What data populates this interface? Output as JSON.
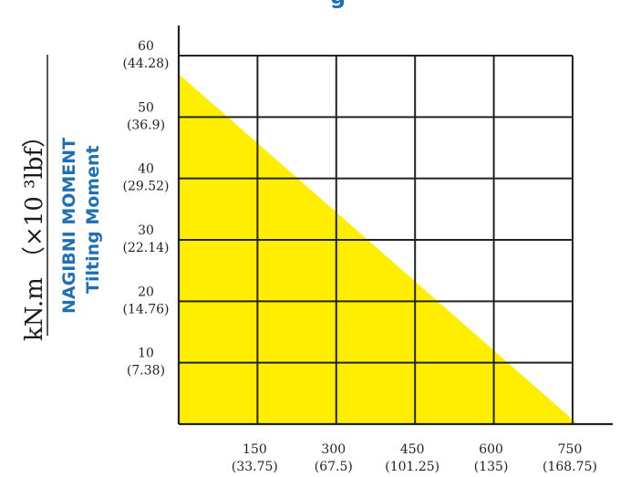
{
  "chart_data": {
    "type": "area",
    "title_fragment": "g",
    "ylabel_unit": "kN.m （×10 ³lbf）",
    "ylabel_primary": "NAGIBNI MOMENT",
    "ylabel_secondary": "Tilting Moment",
    "x_ticks": [
      {
        "value": 150,
        "label": "150",
        "alt": "(33.75)"
      },
      {
        "value": 300,
        "label": "300",
        "alt": "(67.5)"
      },
      {
        "value": 450,
        "label": "450",
        "alt": "(101.25)"
      },
      {
        "value": 600,
        "label": "600",
        "alt": "(135)"
      },
      {
        "value": 750,
        "label": "750",
        "alt": "(168.75)"
      }
    ],
    "y_ticks": [
      {
        "value": 10,
        "label": "10",
        "alt": "(7.38)"
      },
      {
        "value": 20,
        "label": "20",
        "alt": "(14.76)"
      },
      {
        "value": 30,
        "label": "30",
        "alt": "(22.14)"
      },
      {
        "value": 40,
        "label": "40",
        "alt": "(29.52)"
      },
      {
        "value": 50,
        "label": "50",
        "alt": "(36.9)"
      },
      {
        "value": 60,
        "label": "60",
        "alt": "(44.28)"
      }
    ],
    "xlim": [
      0,
      750
    ],
    "ylim": [
      0,
      60
    ],
    "series": [
      {
        "points": [
          [
            0,
            57
          ],
          [
            760,
            0
          ]
        ],
        "color": "#ffee00"
      }
    ],
    "grid": true
  }
}
